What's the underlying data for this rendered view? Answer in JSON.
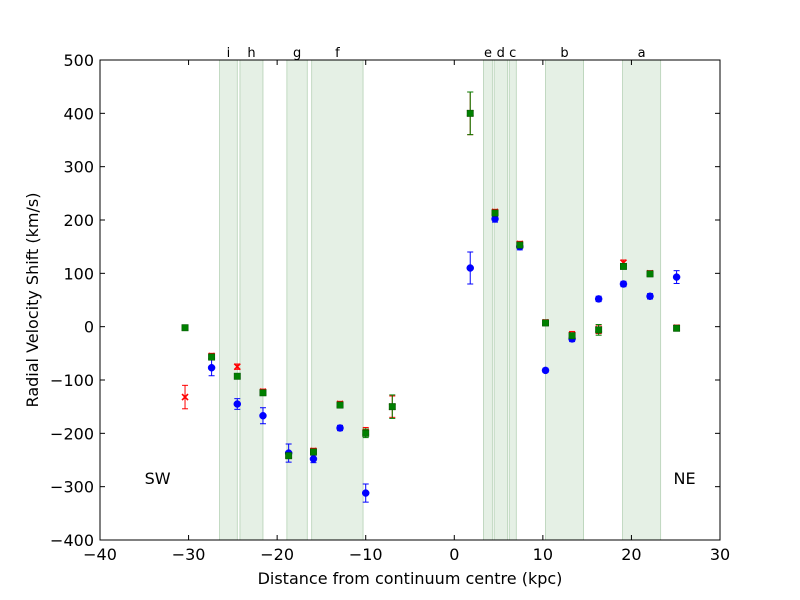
{
  "chart_data": {
    "type": "scatter",
    "xlabel": "Distance from continuum centre (kpc)",
    "ylabel": "Radial Velocity Shift (km/s)",
    "xlim": [
      -40,
      30
    ],
    "ylim": [
      -400,
      500
    ],
    "xticks": [
      "−40",
      "−30",
      "−20",
      "−10",
      "0",
      "10",
      "20",
      "30"
    ],
    "xtick_values": [
      -40,
      -30,
      -20,
      -10,
      0,
      10,
      20,
      30
    ],
    "yticks": [
      "−400",
      "−300",
      "−200",
      "−100",
      "0",
      "100",
      "200",
      "300",
      "400",
      "500"
    ],
    "ytick_values": [
      -400,
      -300,
      -200,
      -100,
      0,
      100,
      200,
      300,
      400,
      500
    ],
    "annotations": [
      {
        "text": "SW",
        "x": -33.5,
        "y": -295
      },
      {
        "text": "NE",
        "x": 26.0,
        "y": -295
      }
    ],
    "regions": [
      {
        "label": "i",
        "x0": -26.5,
        "x1": -24.5
      },
      {
        "label": "h",
        "x0": -24.2,
        "x1": -21.6
      },
      {
        "label": "g",
        "x0": -18.9,
        "x1": -16.6
      },
      {
        "label": "f",
        "x0": -16.1,
        "x1": -10.3
      },
      {
        "label": "e",
        "x0": 3.3,
        "x1": 4.3
      },
      {
        "label": "d",
        "x0": 4.5,
        "x1": 6.0
      },
      {
        "label": "c",
        "x0": 6.2,
        "x1": 7.0
      },
      {
        "label": "b",
        "x0": 10.3,
        "x1": 14.6
      },
      {
        "label": "a",
        "x0": 19.0,
        "x1": 23.3
      }
    ],
    "series": [
      {
        "name": "red-cross",
        "color": "#ff0000",
        "marker": "x",
        "points": [
          {
            "x": -30.4,
            "y": -132,
            "err": 22
          },
          {
            "x": -27.4,
            "y": -55,
            "err": 5
          },
          {
            "x": -24.5,
            "y": -75,
            "err": 5
          },
          {
            "x": -21.6,
            "y": -122,
            "err": 5
          },
          {
            "x": -18.7,
            "y": -240,
            "err": 5
          },
          {
            "x": -15.9,
            "y": -233,
            "err": 5
          },
          {
            "x": -12.9,
            "y": -145,
            "err": 5
          },
          {
            "x": -10.0,
            "y": -197,
            "err": 8
          },
          {
            "x": -7.0,
            "y": -150,
            "err": 20
          },
          {
            "x": 1.8,
            "y": 400,
            "err": 40
          },
          {
            "x": 4.6,
            "y": 215,
            "err": 5
          },
          {
            "x": 7.4,
            "y": 155,
            "err": 5
          },
          {
            "x": 10.3,
            "y": 8,
            "err": 5
          },
          {
            "x": 13.3,
            "y": -15,
            "err": 6
          },
          {
            "x": 16.3,
            "y": -5,
            "err": 8
          },
          {
            "x": 19.1,
            "y": 120,
            "err": 5
          },
          {
            "x": 22.1,
            "y": 100,
            "err": 5
          },
          {
            "x": 25.1,
            "y": -2,
            "err": 5
          }
        ]
      },
      {
        "name": "blue-circle",
        "color": "#0000ff",
        "marker": "circle",
        "points": [
          {
            "x": -27.4,
            "y": -77,
            "err": 15
          },
          {
            "x": -24.5,
            "y": -145,
            "err": 10
          },
          {
            "x": -21.6,
            "y": -167,
            "err": 15
          },
          {
            "x": -18.7,
            "y": -237,
            "err": 17
          },
          {
            "x": -15.9,
            "y": -248,
            "err": 7
          },
          {
            "x": -12.9,
            "y": -190,
            "err": 5
          },
          {
            "x": -10.0,
            "y": -312,
            "err": 17
          },
          {
            "x": 1.8,
            "y": 110,
            "err": 30
          },
          {
            "x": 4.6,
            "y": 202,
            "err": 6
          },
          {
            "x": 7.4,
            "y": 150,
            "err": 6
          },
          {
            "x": 10.3,
            "y": -82,
            "err": 4
          },
          {
            "x": 13.3,
            "y": -23,
            "err": 5
          },
          {
            "x": 16.3,
            "y": 52,
            "err": 5
          },
          {
            "x": 19.1,
            "y": 80,
            "err": 5
          },
          {
            "x": 22.1,
            "y": 57,
            "err": 5
          },
          {
            "x": 25.1,
            "y": 93,
            "err": 12
          }
        ]
      },
      {
        "name": "green-square",
        "color": "#008000",
        "marker": "square",
        "points": [
          {
            "x": -30.4,
            "y": -2,
            "err": 3
          },
          {
            "x": -27.4,
            "y": -57,
            "err": 5
          },
          {
            "x": -24.5,
            "y": -93,
            "err": 3
          },
          {
            "x": -21.6,
            "y": -124,
            "err": 3
          },
          {
            "x": -18.7,
            "y": -242,
            "err": 5
          },
          {
            "x": -15.9,
            "y": -235,
            "err": 5
          },
          {
            "x": -12.9,
            "y": -147,
            "err": 3
          },
          {
            "x": -10.0,
            "y": -200,
            "err": 8
          },
          {
            "x": -7.0,
            "y": -150,
            "err": 22
          },
          {
            "x": 1.8,
            "y": 400,
            "err": 40
          },
          {
            "x": 4.6,
            "y": 213,
            "err": 5
          },
          {
            "x": 7.4,
            "y": 153,
            "err": 5
          },
          {
            "x": 10.3,
            "y": 7,
            "err": 3
          },
          {
            "x": 13.3,
            "y": -17,
            "err": 5
          },
          {
            "x": 16.3,
            "y": -6,
            "err": 10
          },
          {
            "x": 19.1,
            "y": 113,
            "err": 5
          },
          {
            "x": 22.1,
            "y": 99,
            "err": 3
          },
          {
            "x": 25.1,
            "y": -3,
            "err": 3
          }
        ]
      }
    ]
  }
}
